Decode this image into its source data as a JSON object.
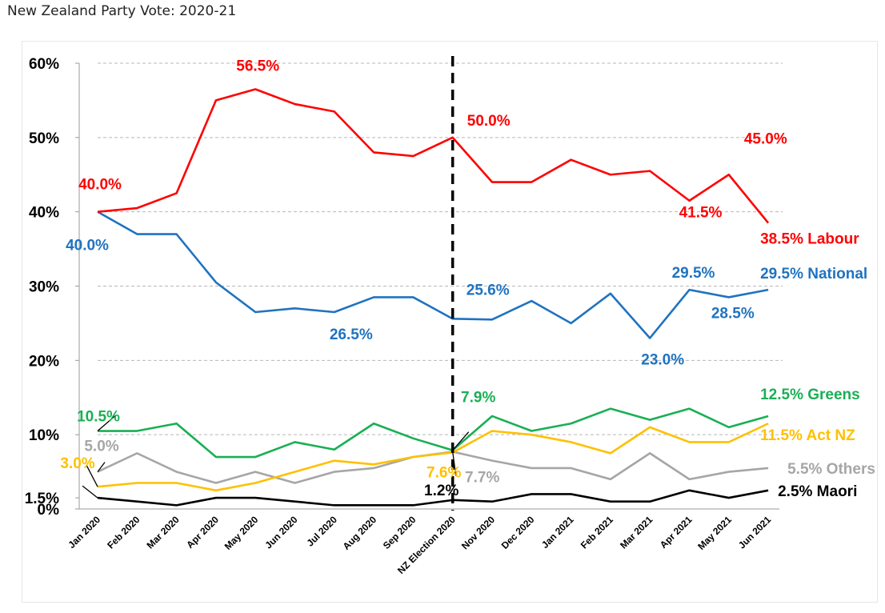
{
  "title": "New Zealand Party Vote: 2020-21",
  "chart_data": {
    "type": "line",
    "title": "New Zealand Party Vote: 2020-21",
    "xlabel": "",
    "ylabel": "",
    "ylim": [
      0,
      60
    ],
    "categories": [
      "Jan 2020",
      "Feb 2020",
      "Mar 2020",
      "Apr 2020",
      "May 2020",
      "Jun 2020",
      "Jul 2020",
      "Aug 2020",
      "Sep 2020",
      "NZ Election 2020",
      "Nov 2020",
      "Dec 2020",
      "Jan 2021",
      "Feb 2021",
      "Mar 2021",
      "Apr 2021",
      "May 2021",
      "Jun 2021"
    ],
    "y_ticks": [
      {
        "value": 0,
        "label": "0%"
      },
      {
        "value": 1.5,
        "label": "1.5%"
      },
      {
        "value": 10,
        "label": "10%"
      },
      {
        "value": 20,
        "label": "20%"
      },
      {
        "value": 30,
        "label": "30%"
      },
      {
        "value": 40,
        "label": "40%"
      },
      {
        "value": 50,
        "label": "50%"
      },
      {
        "value": 60,
        "label": "60%"
      }
    ],
    "gridlines": [
      10,
      20,
      30,
      40,
      50,
      60
    ],
    "election_marker_index": 9,
    "series": [
      {
        "name": "Labour",
        "color": "#ff0000",
        "values": [
          40.0,
          40.5,
          42.5,
          55.0,
          56.5,
          54.5,
          53.5,
          48.0,
          47.5,
          50.0,
          44.0,
          44.0,
          47.0,
          45.0,
          45.5,
          41.5,
          45.0,
          38.5
        ]
      },
      {
        "name": "National",
        "color": "#1f73c0",
        "values": [
          40.0,
          37.0,
          37.0,
          30.5,
          26.5,
          27.0,
          26.5,
          28.5,
          28.5,
          25.6,
          25.5,
          28.0,
          25.0,
          29.0,
          23.0,
          29.5,
          28.5,
          29.5
        ]
      },
      {
        "name": "Greens",
        "color": "#1aaf54",
        "values": [
          10.5,
          10.5,
          11.5,
          7.0,
          7.0,
          9.0,
          8.0,
          11.5,
          9.5,
          7.9,
          12.5,
          10.5,
          11.5,
          13.5,
          12.0,
          13.5,
          11.0,
          12.5
        ]
      },
      {
        "name": "Act NZ",
        "color": "#ffc000",
        "values": [
          3.0,
          3.5,
          3.5,
          2.5,
          3.5,
          5.0,
          6.5,
          6.0,
          7.0,
          7.6,
          10.5,
          10.0,
          9.0,
          7.5,
          11.0,
          9.0,
          9.0,
          11.5
        ]
      },
      {
        "name": "Others",
        "color": "#a6a6a6",
        "values": [
          5.0,
          7.5,
          5.0,
          3.5,
          5.0,
          3.5,
          5.0,
          5.5,
          7.0,
          7.7,
          6.5,
          5.5,
          5.5,
          4.0,
          7.5,
          4.0,
          5.0,
          5.5
        ]
      },
      {
        "name": "Maori",
        "color": "#000000",
        "values": [
          1.5,
          1.0,
          0.5,
          1.5,
          1.5,
          1.0,
          0.5,
          0.5,
          0.5,
          1.2,
          1.0,
          2.0,
          2.0,
          1.0,
          1.0,
          2.5,
          1.5,
          2.5
        ]
      }
    ],
    "annotations": [
      {
        "text": "56.5%",
        "series": "Labour",
        "index": 4
      },
      {
        "text": "40.0%",
        "series": "Labour",
        "index": 0
      },
      {
        "text": "50.0%",
        "series": "Labour",
        "index": 9
      },
      {
        "text": "45.0%",
        "series": "Labour",
        "index": 16
      },
      {
        "text": "41.5%",
        "series": "Labour",
        "index": 15
      },
      {
        "text": "38.5% Labour",
        "series": "Labour",
        "index": 17
      },
      {
        "text": "40.0%",
        "series": "National",
        "index": 0
      },
      {
        "text": "26.5%",
        "series": "National",
        "index": 6
      },
      {
        "text": "25.6%",
        "series": "National",
        "index": 9
      },
      {
        "text": "29.5%",
        "series": "National",
        "index": 15
      },
      {
        "text": "28.5%",
        "series": "National",
        "index": 16
      },
      {
        "text": "23.0%",
        "series": "National",
        "index": 14
      },
      {
        "text": "29.5% National",
        "series": "National",
        "index": 17
      },
      {
        "text": "10.5%",
        "series": "Greens",
        "index": 0
      },
      {
        "text": "7.9%",
        "series": "Greens",
        "index": 9
      },
      {
        "text": "12.5% Greens",
        "series": "Greens",
        "index": 17
      },
      {
        "text": "3.0%",
        "series": "Act NZ",
        "index": 0
      },
      {
        "text": "7.6%",
        "series": "Act NZ",
        "index": 9
      },
      {
        "text": "11.5% Act NZ",
        "series": "Act NZ",
        "index": 17
      },
      {
        "text": "5.0%",
        "series": "Others",
        "index": 0
      },
      {
        "text": "7.7%",
        "series": "Others",
        "index": 9
      },
      {
        "text": "5.5% Others",
        "series": "Others",
        "index": 17
      },
      {
        "text": "1.2%",
        "series": "Maori",
        "index": 9
      },
      {
        "text": "2.5% Maori",
        "series": "Maori",
        "index": 17
      }
    ]
  }
}
